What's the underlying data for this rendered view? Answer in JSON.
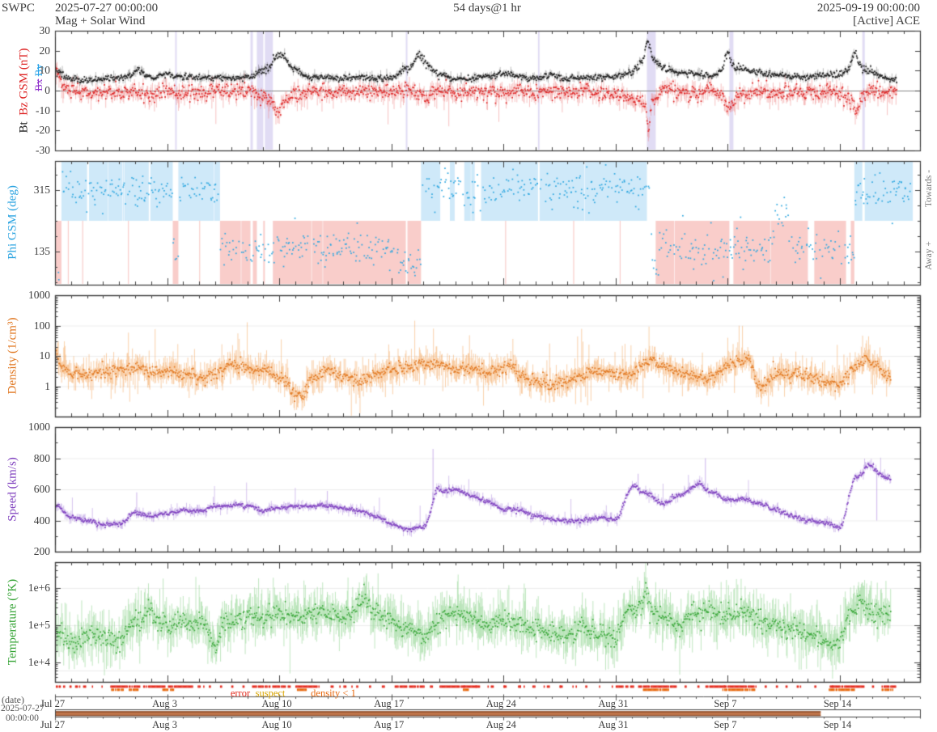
{
  "header": {
    "agency": "SWPC",
    "start_datetime": "2025-07-27 00:00:00",
    "duration": "54 days@1 hr",
    "end_datetime": "2025-09-19 00:00:00",
    "plot_type": "Mag + Solar Wind",
    "source": "[Active] ACE"
  },
  "footer": {
    "date_axis_label": "(date)",
    "start_date": "2025-07-27",
    "start_time": "00:00:00",
    "legend": [
      {
        "label": "error",
        "color": "#e42a1d"
      },
      {
        "label": "suspect",
        "color": "#d9a400"
      },
      {
        "label": "density < 1",
        "color": "#e8680e"
      }
    ],
    "date_ticks": [
      "Jul 27",
      "Aug 3",
      "Aug 10",
      "Aug 17",
      "Aug 24",
      "Aug 31",
      "Sep 7",
      "Sep 14"
    ]
  },
  "chart_data": {
    "type": "scatter",
    "x_start": "2025-07-27 00:00:00",
    "x_end": "2025-09-19 00:00:00",
    "x_span_days": 54,
    "sample_interval_hours": 1,
    "data_end_day_mag": 52.55,
    "data_end_day_plasma": 52.2,
    "data_end_day_phi": 53.45,
    "panels": [
      {
        "id": "mag",
        "ylabel_primary": "Bt",
        "ylabel_secondary": "Bz GSM (nT)",
        "ylabel_disabled": [
          "Bx",
          "By"
        ],
        "colors": {
          "bt": "#1a1a1a",
          "bz": "#dd2222",
          "bx_label": "#9033cc",
          "by_label": "#29a3e8"
        },
        "ylim": [
          -30,
          30
        ],
        "yticks": [
          {
            "label": "30",
            "v": 30
          },
          {
            "label": "20",
            "v": 20
          },
          {
            "label": "10",
            "v": 10
          },
          {
            "label": "0",
            "v": 0
          },
          {
            "label": "-10",
            "v": -10
          },
          {
            "label": "-20",
            "v": -20
          },
          {
            "label": "-30",
            "v": -30
          }
        ],
        "bt_daily": [
          10,
          6,
          5,
          6,
          6.5,
          8,
          7,
          8,
          7,
          6.5,
          6.5,
          6,
          7,
          10,
          16,
          10,
          6.5,
          6.5,
          6,
          6.5,
          6,
          6.5,
          11,
          15,
          8,
          6,
          6,
          7,
          8.5,
          7,
          6,
          7.5,
          6,
          6,
          7,
          7,
          9,
          18,
          11,
          9,
          8,
          7,
          13,
          11,
          9,
          8,
          7,
          7,
          7.5,
          8,
          13,
          9,
          6,
          5.5,
          5
        ],
        "bz_daily": [
          6,
          0,
          -2,
          0,
          -1,
          0,
          -2,
          0,
          -1,
          -1,
          0,
          -1,
          0,
          -4,
          -6,
          -2,
          0,
          -1,
          0,
          -1,
          0,
          -1,
          1,
          -2,
          0,
          -1,
          0,
          -1,
          -2,
          0,
          -1,
          0,
          -1,
          0,
          -1,
          -2,
          -3,
          -8,
          1,
          0,
          -2,
          0,
          -5,
          -2,
          0,
          -2,
          0,
          -1,
          0,
          -2,
          -5,
          1,
          -1,
          -2,
          -1
        ],
        "bt_spikes": [
          [
            37.0,
            7,
            0.15
          ],
          [
            42.0,
            7,
            0.2
          ],
          [
            49.9,
            7,
            0.2
          ],
          [
            14.2,
            2.5,
            0.5
          ],
          [
            22.7,
            4,
            0.25
          ],
          [
            5.2,
            3,
            0.25
          ]
        ],
        "bz_spikes": [
          [
            37.05,
            -12,
            0.12
          ],
          [
            13.9,
            -5,
            0.25
          ],
          [
            42.1,
            -5,
            0.15
          ],
          [
            50.0,
            -5,
            0.15
          ],
          [
            23.3,
            -4,
            0.12
          ],
          [
            0.15,
            4,
            0.2
          ]
        ],
        "gap_stripes": [
          [
            12.2,
            12.35
          ],
          [
            12.6,
            13.0
          ],
          [
            13.1,
            13.6
          ],
          [
            21.9,
            22.0
          ],
          [
            30.15,
            30.25
          ],
          [
            36.95,
            37.5
          ],
          [
            42.1,
            42.35
          ],
          [
            50.4,
            50.55
          ],
          [
            7.5,
            7.6
          ]
        ]
      },
      {
        "id": "phi",
        "ylabel": "Phi GSM (deg)",
        "color": "#29a3e0",
        "right_label_top": "Towards -",
        "right_label_bottom": "Away +",
        "yticks": [
          {
            "label": "315",
            "v": 315
          },
          {
            "label": "135",
            "v": 135
          }
        ],
        "sector_regions": [
          [
            0,
            0.4,
            "away"
          ],
          [
            0.4,
            7.35,
            "toward"
          ],
          [
            7.35,
            7.7,
            "away"
          ],
          [
            7.7,
            10.3,
            "toward"
          ],
          [
            10.3,
            22.85,
            "away"
          ],
          [
            22.85,
            37.15,
            "toward"
          ],
          [
            37.15,
            49.9,
            "away"
          ],
          [
            49.9,
            53.55,
            "toward"
          ]
        ],
        "white_gaps": [
          [
            2.0,
            2.12
          ],
          [
            5.85,
            5.95
          ],
          [
            12.2,
            12.35
          ],
          [
            12.6,
            13.0
          ],
          [
            13.1,
            13.6
          ],
          [
            21.9,
            22.0
          ],
          [
            24.05,
            24.65
          ],
          [
            24.95,
            25.55
          ],
          [
            26.2,
            26.6
          ],
          [
            30.15,
            30.25
          ],
          [
            36.95,
            37.5
          ],
          [
            42.1,
            42.35
          ],
          [
            47.0,
            47.4
          ],
          [
            49.38,
            49.68
          ],
          [
            50.4,
            50.55
          ]
        ],
        "pink_slivers": [
          [
            0.8,
            0.85
          ],
          [
            1.7,
            1.75
          ],
          [
            4.55,
            4.6
          ],
          [
            9.0,
            9.05
          ],
          [
            26.35,
            26.4
          ],
          [
            28.1,
            28.15
          ],
          [
            32.35,
            32.4
          ],
          [
            35.25,
            35.3
          ],
          [
            45.3,
            45.35
          ]
        ],
        "excursions": [
          [
            0,
            0.4,
            65
          ],
          [
            21.4,
            22.6,
            95
          ],
          [
            37.25,
            37.7,
            80
          ],
          [
            44.9,
            45.8,
            250
          ]
        ],
        "shade_toward": "#cfe9f9",
        "shade_away": "#f9cdca"
      },
      {
        "id": "density",
        "ylabel": "Density (1/cm³)",
        "color": "#e0761f",
        "scale": "log",
        "yticks": [
          {
            "label": "1000",
            "v": 1000
          },
          {
            "label": "100",
            "v": 100
          },
          {
            "label": "10",
            "v": 10
          },
          {
            "label": "1",
            "v": 1
          }
        ],
        "daily": [
          5,
          3,
          2.5,
          3,
          3.5,
          4,
          3,
          3,
          2.5,
          2,
          2.5,
          5,
          4,
          3.5,
          2,
          0.6,
          1.5,
          3,
          2,
          1.5,
          2.5,
          3.5,
          4,
          6,
          5,
          3.5,
          4,
          3,
          3.5,
          2.2,
          1.5,
          1.2,
          1.5,
          2.5,
          3,
          2.5,
          2.5,
          6,
          5,
          3,
          2,
          1.8,
          5,
          6,
          0.9,
          2.5,
          2.5,
          2,
          1.5,
          1.2,
          4,
          6,
          2,
          1.5,
          2
        ],
        "spikes_dex": [
          [
            0.1,
            0.35,
            0.15
          ],
          [
            37.3,
            0.2,
            0.2
          ],
          [
            43.3,
            0.25,
            0.2
          ],
          [
            50.6,
            0.2,
            0.2
          ],
          [
            28.6,
            0.25,
            0.25
          ],
          [
            15.5,
            -0.3,
            0.3
          ]
        ]
      },
      {
        "id": "speed",
        "ylabel": "Speed (km/s)",
        "color": "#7e3fbe",
        "ylim": [
          200,
          1000
        ],
        "yticks": [
          {
            "label": "1000",
            "v": 1000
          },
          {
            "label": "800",
            "v": 800
          },
          {
            "label": "600",
            "v": 600
          },
          {
            "label": "400",
            "v": 400
          },
          {
            "label": "200",
            "v": 200
          }
        ],
        "daily": [
          500,
          420,
          400,
          375,
          375,
          450,
          430,
          445,
          465,
          460,
          490,
          500,
          495,
          465,
          480,
          490,
          495,
          495,
          480,
          460,
          430,
          380,
          345,
          360,
          580,
          600,
          560,
          520,
          470,
          465,
          430,
          405,
          400,
          405,
          420,
          405,
          600,
          570,
          510,
          560,
          620,
          580,
          530,
          540,
          510,
          470,
          430,
          400,
          385,
          360,
          680,
          730,
          670,
          640,
          620
        ],
        "spikes": [
          [
            36.2,
            30,
            0.2
          ],
          [
            23.8,
            40,
            0.25
          ],
          [
            50.8,
            30,
            0.3
          ],
          [
            40.3,
            30,
            0.2
          ]
        ],
        "whisker_events": [
          [
            23.6,
            860,
            null
          ],
          [
            5.1,
            580,
            null
          ],
          [
            17.0,
            590,
            null
          ],
          [
            40.6,
            800,
            null
          ],
          [
            36.4,
            700,
            null
          ],
          [
            51.3,
            null,
            400
          ]
        ]
      },
      {
        "id": "temperature",
        "ylabel": "Temperature (°K)",
        "color": "#33a333",
        "scale": "log",
        "yticks": [
          {
            "label": "1e+6",
            "v": 1000000
          },
          {
            "label": "1e+5",
            "v": 100000
          },
          {
            "label": "1e+4",
            "v": 10000
          }
        ],
        "daily_thousands": [
          70,
          30,
          45,
          50,
          35,
          120,
          150,
          100,
          130,
          110,
          60,
          130,
          180,
          160,
          200,
          160,
          200,
          220,
          160,
          300,
          200,
          130,
          90,
          50,
          150,
          200,
          150,
          100,
          120,
          100,
          80,
          60,
          60,
          80,
          60,
          40,
          300,
          300,
          150,
          100,
          200,
          250,
          150,
          200,
          120,
          100,
          80,
          60,
          40,
          30,
          250,
          250,
          200,
          150,
          130
        ],
        "spikes_dex": [
          [
            5.9,
            0.35,
            0.2
          ],
          [
            19.3,
            0.3,
            0.25
          ],
          [
            36.9,
            0.55,
            0.15
          ],
          [
            42.0,
            0.2,
            0.2
          ],
          [
            50.3,
            0.25,
            0.25
          ],
          [
            10.0,
            -0.5,
            0.2
          ],
          [
            23.5,
            -0.2,
            0.3
          ]
        ]
      }
    ],
    "quality_strip": {
      "error_segments_days": [
        [
          0.05,
          0.3
        ],
        [
          0.5,
          0.62
        ],
        [
          0.9,
          1.02
        ],
        [
          1.3,
          1.42
        ],
        [
          1.75,
          1.9
        ],
        [
          2.3,
          2.42
        ],
        [
          2.9,
          3.0
        ],
        [
          3.45,
          5.3
        ],
        [
          5.5,
          6.9
        ],
        [
          7.05,
          8.6
        ],
        [
          8.9,
          9.05
        ],
        [
          9.6,
          9.72
        ],
        [
          10.3,
          10.42
        ],
        [
          11.0,
          11.12
        ],
        [
          11.7,
          11.82
        ],
        [
          12.3,
          14.7
        ],
        [
          15.0,
          16.5
        ],
        [
          17.2,
          17.32
        ],
        [
          18.0,
          18.12
        ],
        [
          18.8,
          18.92
        ],
        [
          19.6,
          19.72
        ],
        [
          20.4,
          20.52
        ],
        [
          21.2,
          23.0
        ],
        [
          23.4,
          23.52
        ],
        [
          24.0,
          26.5
        ],
        [
          27.2,
          27.32
        ],
        [
          28.0,
          28.12
        ],
        [
          28.9,
          29.02
        ],
        [
          29.8,
          29.92
        ],
        [
          30.7,
          30.82
        ],
        [
          31.5,
          31.62
        ],
        [
          32.3,
          32.42
        ],
        [
          33.1,
          33.22
        ],
        [
          33.9,
          34.02
        ],
        [
          35.0,
          36.1
        ],
        [
          36.4,
          38.8
        ],
        [
          39.3,
          39.42
        ],
        [
          40.1,
          40.22
        ],
        [
          40.6,
          43.8
        ],
        [
          44.3,
          44.42
        ],
        [
          45.0,
          45.12
        ],
        [
          45.6,
          45.72
        ],
        [
          46.3,
          46.42
        ],
        [
          47.4,
          47.52
        ],
        [
          48.3,
          50.5
        ],
        [
          51.0,
          51.12
        ],
        [
          51.6,
          52.45
        ]
      ],
      "suspect_segments_days": [
        [
          3.5,
          4.25
        ],
        [
          4.6,
          5.15
        ],
        [
          6.7,
          7.4
        ],
        [
          15.1,
          15.7
        ],
        [
          25.4,
          25.8
        ],
        [
          36.7,
          38.3
        ],
        [
          41.6,
          43.7
        ],
        [
          48.3,
          49.9
        ],
        [
          51.6,
          52.3
        ]
      ],
      "loaded_bar_end_day": 47.8
    }
  }
}
